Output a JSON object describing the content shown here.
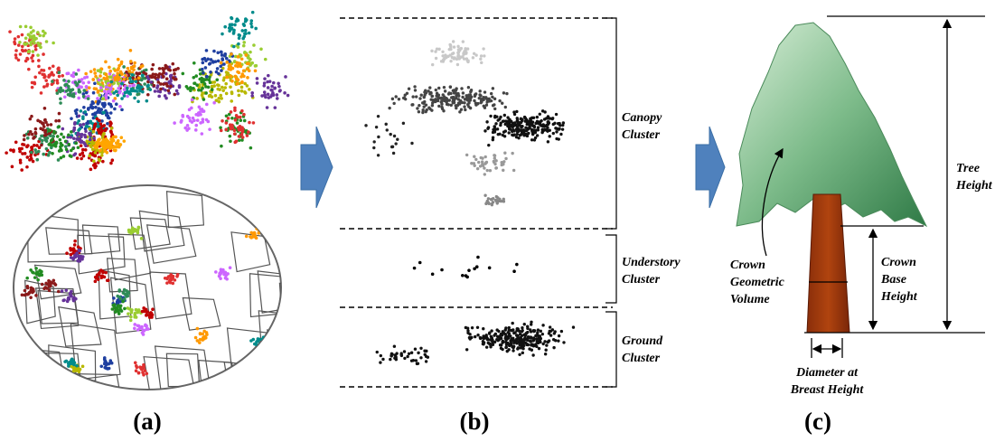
{
  "panel_a": {
    "caption": "(a)"
  },
  "panel_b": {
    "caption": "(b)",
    "clusters": [
      {
        "lines": [
          "Canopy",
          "Cluster"
        ]
      },
      {
        "lines": [
          "Understory",
          "Cluster"
        ]
      },
      {
        "lines": [
          "Ground",
          "Cluster"
        ]
      }
    ]
  },
  "panel_c": {
    "caption": "(c)",
    "tree_height": [
      "Tree",
      "Height"
    ],
    "crown_base_height": [
      "Crown",
      "Base",
      "Height"
    ],
    "crown_volume": [
      "Crown",
      "Geometric",
      "Volume"
    ],
    "dbh": [
      "Diameter at",
      "Breast Height"
    ]
  }
}
